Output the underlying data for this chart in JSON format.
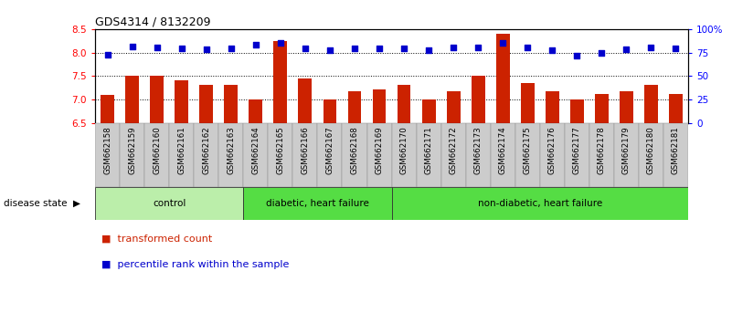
{
  "title": "GDS4314 / 8132209",
  "samples": [
    "GSM662158",
    "GSM662159",
    "GSM662160",
    "GSM662161",
    "GSM662162",
    "GSM662163",
    "GSM662164",
    "GSM662165",
    "GSM662166",
    "GSM662167",
    "GSM662168",
    "GSM662169",
    "GSM662170",
    "GSM662171",
    "GSM662172",
    "GSM662173",
    "GSM662174",
    "GSM662175",
    "GSM662176",
    "GSM662177",
    "GSM662178",
    "GSM662179",
    "GSM662180",
    "GSM662181"
  ],
  "bar_values": [
    7.1,
    7.5,
    7.5,
    7.4,
    7.3,
    7.3,
    7.0,
    8.25,
    7.45,
    7.0,
    7.17,
    7.22,
    7.3,
    7.0,
    7.18,
    7.5,
    8.4,
    7.35,
    7.17,
    7.0,
    7.12,
    7.18,
    7.3,
    7.12
  ],
  "percentile_values": [
    73,
    81,
    80,
    79,
    78,
    79,
    83,
    85,
    79,
    77,
    79,
    79,
    79,
    77,
    80,
    80,
    85,
    80,
    77,
    72,
    75,
    78,
    80,
    79
  ],
  "bar_color": "#cc2200",
  "percentile_color": "#0000cc",
  "ylim_left": [
    6.5,
    8.5
  ],
  "ylim_right": [
    0,
    100
  ],
  "yticks_left": [
    6.5,
    7.0,
    7.5,
    8.0,
    8.5
  ],
  "yticks_right": [
    0,
    25,
    50,
    75,
    100
  ],
  "ytick_labels_right": [
    "0",
    "25",
    "50",
    "75",
    "100%"
  ],
  "gridlines": [
    7.0,
    7.5,
    8.0
  ],
  "group_configs": [
    {
      "label": "control",
      "start": 0,
      "end": 6,
      "color": "#bbeeaa"
    },
    {
      "label": "diabetic, heart failure",
      "start": 6,
      "end": 12,
      "color": "#55dd44"
    },
    {
      "label": "non-diabetic, heart failure",
      "start": 12,
      "end": 24,
      "color": "#55dd44"
    }
  ],
  "legend_items": [
    {
      "label": "transformed count",
      "color": "#cc2200"
    },
    {
      "label": "percentile rank within the sample",
      "color": "#0000cc"
    }
  ],
  "disease_state_label": "disease state",
  "tick_area_color": "#cccccc",
  "tick_area_border": "#888888"
}
